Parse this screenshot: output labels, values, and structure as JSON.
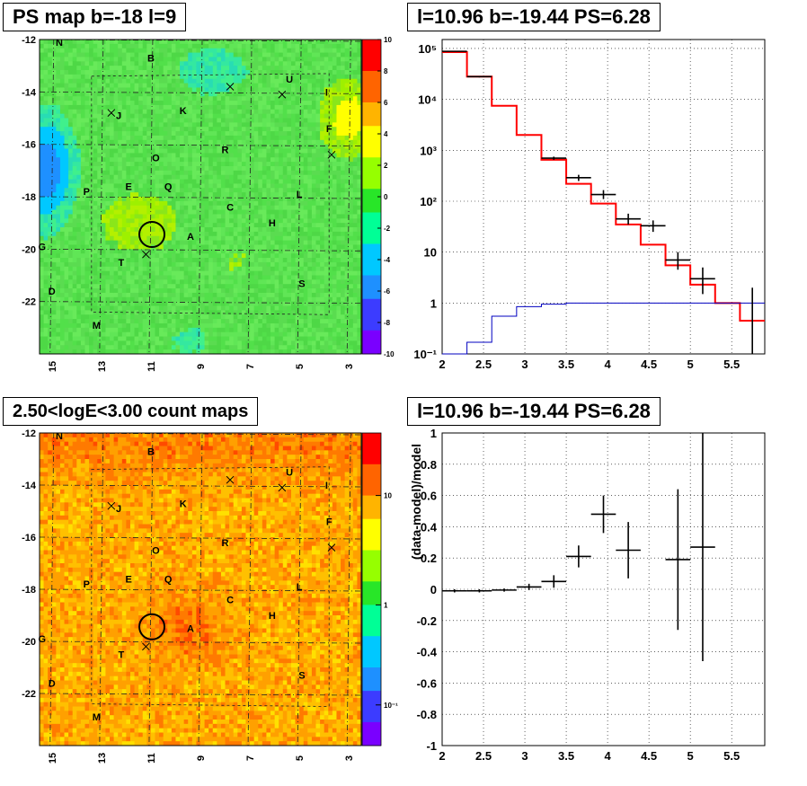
{
  "panels": {
    "ps_map": {
      "title": "PS map b=-18 l=9",
      "x_ticks": [
        "15",
        "13",
        "11",
        "9",
        "7",
        "5",
        "3"
      ],
      "y_ticks": [
        "-12",
        "-14",
        "-16",
        "-18",
        "-20",
        "-22"
      ],
      "colorbar_ticks": [
        "10",
        "8",
        "6",
        "4",
        "2",
        "0",
        "-2",
        "-4",
        "-6",
        "-8",
        "-10"
      ],
      "colorbar_range": [
        -10,
        10
      ],
      "colorscale": [
        "#7a00ff",
        "#3c3cff",
        "#1e90ff",
        "#00c8ff",
        "#00ff96",
        "#28e628",
        "#96ff00",
        "#ffff00",
        "#ffb400",
        "#ff6400",
        "#ff0000"
      ],
      "background_color": "#5fe05a",
      "labels": [
        {
          "text": "N",
          "l": 14.7,
          "b": -12.1
        },
        {
          "text": "B",
          "l": 11.0,
          "b": -12.7
        },
        {
          "text": "U",
          "l": 5.4,
          "b": -13.5
        },
        {
          "text": "I",
          "l": 3.9,
          "b": -14.0
        },
        {
          "text": "J",
          "l": 12.3,
          "b": -14.9
        },
        {
          "text": "K",
          "l": 9.7,
          "b": -14.7
        },
        {
          "text": "F",
          "l": 3.8,
          "b": -15.4
        },
        {
          "text": "O",
          "l": 10.8,
          "b": -16.5
        },
        {
          "text": "R",
          "l": 8.0,
          "b": -16.2
        },
        {
          "text": "P",
          "l": 13.6,
          "b": -17.8
        },
        {
          "text": "E",
          "l": 11.9,
          "b": -17.6
        },
        {
          "text": "Q",
          "l": 10.3,
          "b": -17.6
        },
        {
          "text": "L",
          "l": 5.0,
          "b": -17.9
        },
        {
          "text": "C",
          "l": 7.8,
          "b": -18.4
        },
        {
          "text": "H",
          "l": 6.1,
          "b": -19.0
        },
        {
          "text": "A",
          "l": 9.4,
          "b": -19.5
        },
        {
          "text": "G",
          "l": 15.4,
          "b": -19.9
        },
        {
          "text": "T",
          "l": 12.2,
          "b": -20.5
        },
        {
          "text": "S",
          "l": 4.9,
          "b": -21.3
        },
        {
          "text": "D",
          "l": 15.0,
          "b": -21.6
        },
        {
          "text": "M",
          "l": 13.2,
          "b": -22.9
        }
      ],
      "crosses": [
        {
          "l": 12.6,
          "b": -14.8
        },
        {
          "l": 7.8,
          "b": -13.8
        },
        {
          "l": 5.7,
          "b": -14.1
        },
        {
          "l": 3.7,
          "b": -16.4
        },
        {
          "l": 11.2,
          "b": -20.2
        }
      ],
      "circle": {
        "l": 10.96,
        "b": -19.44
      }
    },
    "count_map": {
      "title": "2.50<logE<3.00 count maps",
      "x_ticks": [
        "15",
        "13",
        "11",
        "9",
        "7",
        "5",
        "3"
      ],
      "y_ticks": [
        "-12",
        "-14",
        "-16",
        "-18",
        "-20",
        "-22"
      ],
      "colorbar_ticks": [
        "10",
        "1",
        "10⁻¹"
      ],
      "colorscale": [
        "#7a00ff",
        "#3c3cff",
        "#1e90ff",
        "#00c8ff",
        "#00ff96",
        "#28e628",
        "#96ff00",
        "#ffff00",
        "#ffb400",
        "#ff6400",
        "#ff0000"
      ],
      "background_color": "#f5a030"
    },
    "spectrum": {
      "title": "l=10.96 b=-19.44 PS=6.28",
      "x_ticks": [
        "2",
        "2.5",
        "3",
        "3.5",
        "4",
        "4.5",
        "5",
        "5.5"
      ],
      "y_ticks": [
        "10⁻¹",
        "1",
        "10",
        "10²",
        "10³",
        "10⁴",
        "10⁵"
      ]
    },
    "residual": {
      "title": "l=10.96 b=-19.44 PS=6.28",
      "ylabel": "(data-model)/model",
      "x_ticks": [
        "2",
        "2.5",
        "3",
        "3.5",
        "4",
        "4.5",
        "5",
        "5.5"
      ],
      "y_ticks": [
        "1",
        "0.8",
        "0.6",
        "0.4",
        "0.2",
        "0",
        "-0.2",
        "-0.4",
        "-0.6",
        "-0.8",
        "-1"
      ]
    }
  },
  "chart_data": [
    {
      "type": "heatmap",
      "title": "PS map b=-18 l=9",
      "xlim": [
        15.5,
        2.5
      ],
      "ylim": [
        -24,
        -12
      ],
      "zlim": [
        -10,
        10
      ]
    },
    {
      "type": "heatmap",
      "title": "2.50<logE<3.00 count maps",
      "xlim": [
        15.5,
        2.5
      ],
      "ylim": [
        -24,
        -12
      ],
      "zscale": "log"
    },
    {
      "type": "line",
      "title": "l=10.96 b=-19.44 PS=6.28",
      "yscale": "log",
      "xlim": [
        2.0,
        5.9
      ],
      "ylim": [
        0.1,
        150000
      ],
      "grid": true,
      "series": [
        {
          "color": "#ff0000",
          "steps": [
            [
              2.0,
              2.3,
              85000
            ],
            [
              2.3,
              2.6,
              28000
            ],
            [
              2.6,
              2.9,
              7500
            ],
            [
              2.9,
              3.2,
              2000
            ],
            [
              3.2,
              3.5,
              650
            ],
            [
              3.5,
              3.8,
              220
            ],
            [
              3.8,
              4.1,
              90
            ],
            [
              4.1,
              4.4,
              35
            ],
            [
              4.4,
              4.7,
              14
            ],
            [
              4.7,
              5.0,
              5.5
            ],
            [
              5.0,
              5.3,
              2.3
            ],
            [
              5.3,
              5.6,
              1.0
            ],
            [
              5.6,
              5.9,
              0.45
            ]
          ]
        },
        {
          "color": "#0000c0",
          "steps": [
            [
              2.0,
              2.3,
              0.1
            ],
            [
              2.3,
              2.6,
              0.17
            ],
            [
              2.6,
              2.9,
              0.55
            ],
            [
              2.9,
              3.2,
              0.85
            ],
            [
              3.2,
              3.5,
              0.95
            ],
            [
              3.5,
              5.9,
              1.0
            ]
          ]
        }
      ],
      "points": [
        {
          "x": 2.15,
          "y": 88000,
          "ylo": 86000,
          "yhi": 90000,
          "xerr": 0.15
        },
        {
          "x": 2.45,
          "y": 28000,
          "ylo": 27000,
          "yhi": 29000,
          "xerr": 0.15
        },
        {
          "x": 3.35,
          "y": 700,
          "ylo": 650,
          "yhi": 750,
          "xerr": 0.15
        },
        {
          "x": 3.65,
          "y": 290,
          "ylo": 250,
          "yhi": 330,
          "xerr": 0.15
        },
        {
          "x": 3.95,
          "y": 135,
          "ylo": 110,
          "yhi": 165,
          "xerr": 0.15
        },
        {
          "x": 4.25,
          "y": 45,
          "ylo": 35,
          "yhi": 57,
          "xerr": 0.15
        },
        {
          "x": 4.55,
          "y": 33,
          "ylo": 25,
          "yhi": 42,
          "xerr": 0.15
        },
        {
          "x": 4.85,
          "y": 7,
          "ylo": 4.5,
          "yhi": 10,
          "xerr": 0.15
        },
        {
          "x": 5.15,
          "y": 3,
          "ylo": 1.5,
          "yhi": 5,
          "xerr": 0.15
        },
        {
          "x": 5.75,
          "y": 0.5,
          "ylo": 0.1,
          "yhi": 2,
          "xerr": 0.0
        }
      ]
    },
    {
      "type": "scatter",
      "title": "l=10.96 b=-19.44 PS=6.28",
      "ylabel": "(data-model)/model",
      "xlim": [
        2.0,
        5.9
      ],
      "ylim": [
        -1,
        1
      ],
      "grid": true,
      "points": [
        {
          "x": 2.15,
          "y": -0.01,
          "yerr": 0.01,
          "xerr": 0.15
        },
        {
          "x": 2.45,
          "y": -0.01,
          "yerr": 0.01,
          "xerr": 0.15
        },
        {
          "x": 2.75,
          "y": -0.005,
          "yerr": 0.01,
          "xerr": 0.15
        },
        {
          "x": 3.05,
          "y": 0.015,
          "yerr": 0.02,
          "xerr": 0.15
        },
        {
          "x": 3.35,
          "y": 0.05,
          "yerr": 0.04,
          "xerr": 0.15
        },
        {
          "x": 3.65,
          "y": 0.21,
          "yerr": 0.07,
          "xerr": 0.15
        },
        {
          "x": 3.95,
          "y": 0.48,
          "yerr": 0.12,
          "xerr": 0.15
        },
        {
          "x": 4.25,
          "y": 0.25,
          "yerr": 0.18,
          "xerr": 0.15
        },
        {
          "x": 4.85,
          "y": 0.19,
          "yerr": 0.45,
          "xerr": 0.15
        },
        {
          "x": 5.15,
          "y": 0.27,
          "yerr": 0.73,
          "xerr": 0.15
        }
      ]
    }
  ]
}
